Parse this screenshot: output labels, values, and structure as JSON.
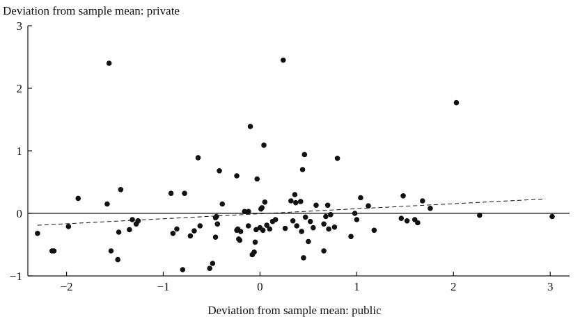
{
  "chart_data": {
    "type": "scatter",
    "ylabel": "Deviation from sample mean: private",
    "xlabel": "Deviation from sample mean: public",
    "xlim": [
      -2.4,
      3.2
    ],
    "ylim": [
      -1,
      3
    ],
    "xticks": [
      -2,
      -1,
      0,
      1,
      2,
      3
    ],
    "xtick_labels": [
      "−2",
      "−1",
      "0",
      "1",
      "2",
      "3"
    ],
    "yticks": [
      -1,
      0,
      1,
      2,
      3
    ],
    "ytick_labels": [
      "−1",
      "0",
      "1",
      "2",
      "3"
    ],
    "zero_line": true,
    "grid": false,
    "trend_line": {
      "style": "dashed",
      "x": [
        -2.3,
        2.95
      ],
      "y": [
        -0.19,
        0.23
      ]
    },
    "points": [
      [
        -2.3,
        -0.32
      ],
      [
        -2.15,
        -0.6
      ],
      [
        -2.13,
        -0.6
      ],
      [
        -1.98,
        -0.21
      ],
      [
        -1.88,
        0.24
      ],
      [
        -1.58,
        0.15
      ],
      [
        -1.56,
        2.4
      ],
      [
        -1.54,
        -0.6
      ],
      [
        -1.47,
        -0.74
      ],
      [
        -1.46,
        -0.3
      ],
      [
        -1.44,
        0.38
      ],
      [
        -1.35,
        -0.26
      ],
      [
        -1.32,
        -0.1
      ],
      [
        -1.28,
        -0.17
      ],
      [
        -1.26,
        -0.12
      ],
      [
        -0.92,
        0.32
      ],
      [
        -0.9,
        -0.32
      ],
      [
        -0.86,
        -0.25
      ],
      [
        -0.8,
        -0.9
      ],
      [
        -0.78,
        0.32
      ],
      [
        -0.72,
        -0.36
      ],
      [
        -0.68,
        -0.28
      ],
      [
        -0.64,
        0.89
      ],
      [
        -0.62,
        -0.2
      ],
      [
        -0.52,
        -0.88
      ],
      [
        -0.49,
        -0.8
      ],
      [
        -0.46,
        -0.38
      ],
      [
        -0.46,
        -0.07
      ],
      [
        -0.45,
        -0.05
      ],
      [
        -0.44,
        -0.17
      ],
      [
        -0.42,
        0.68
      ],
      [
        -0.39,
        0.15
      ],
      [
        -0.24,
        0.6
      ],
      [
        -0.24,
        -0.27
      ],
      [
        -0.23,
        -0.25
      ],
      [
        -0.22,
        -0.41
      ],
      [
        -0.21,
        -0.43
      ],
      [
        -0.2,
        -0.29
      ],
      [
        -0.16,
        0.03
      ],
      [
        -0.13,
        0.02
      ],
      [
        -0.12,
        0.03
      ],
      [
        -0.12,
        -0.2
      ],
      [
        -0.1,
        1.39
      ],
      [
        -0.08,
        -0.66
      ],
      [
        -0.06,
        -0.62
      ],
      [
        -0.05,
        -0.46
      ],
      [
        -0.04,
        -0.26
      ],
      [
        -0.03,
        0.55
      ],
      [
        0.0,
        -0.23
      ],
      [
        0.01,
        0.07
      ],
      [
        0.02,
        0.09
      ],
      [
        0.03,
        -0.27
      ],
      [
        0.04,
        1.09
      ],
      [
        0.05,
        0.18
      ],
      [
        0.07,
        -0.19
      ],
      [
        0.1,
        -0.25
      ],
      [
        0.13,
        -0.13
      ],
      [
        0.16,
        -0.1
      ],
      [
        0.24,
        2.45
      ],
      [
        0.26,
        -0.24
      ],
      [
        0.32,
        0.2
      ],
      [
        0.34,
        -0.12
      ],
      [
        0.36,
        0.3
      ],
      [
        0.37,
        0.17
      ],
      [
        0.38,
        -0.2
      ],
      [
        0.42,
        0.19
      ],
      [
        0.43,
        -0.29
      ],
      [
        0.44,
        0.7
      ],
      [
        0.45,
        -0.71
      ],
      [
        0.46,
        0.94
      ],
      [
        0.47,
        -0.06
      ],
      [
        0.5,
        -0.45
      ],
      [
        0.52,
        -0.13
      ],
      [
        0.55,
        -0.23
      ],
      [
        0.58,
        0.13
      ],
      [
        0.66,
        -0.6
      ],
      [
        0.66,
        -0.17
      ],
      [
        0.68,
        -0.05
      ],
      [
        0.7,
        0.13
      ],
      [
        0.71,
        -0.25
      ],
      [
        0.73,
        -0.02
      ],
      [
        0.77,
        -0.22
      ],
      [
        0.8,
        0.88
      ],
      [
        0.94,
        -0.37
      ],
      [
        0.98,
        0.0
      ],
      [
        1.0,
        -0.1
      ],
      [
        1.04,
        0.25
      ],
      [
        1.12,
        0.12
      ],
      [
        1.18,
        -0.27
      ],
      [
        1.46,
        -0.08
      ],
      [
        1.48,
        0.28
      ],
      [
        1.52,
        -0.12
      ],
      [
        1.6,
        -0.1
      ],
      [
        1.63,
        -0.15
      ],
      [
        1.68,
        0.2
      ],
      [
        1.76,
        0.08
      ],
      [
        2.03,
        1.77
      ],
      [
        2.27,
        -0.03
      ],
      [
        3.02,
        -0.05
      ]
    ]
  }
}
